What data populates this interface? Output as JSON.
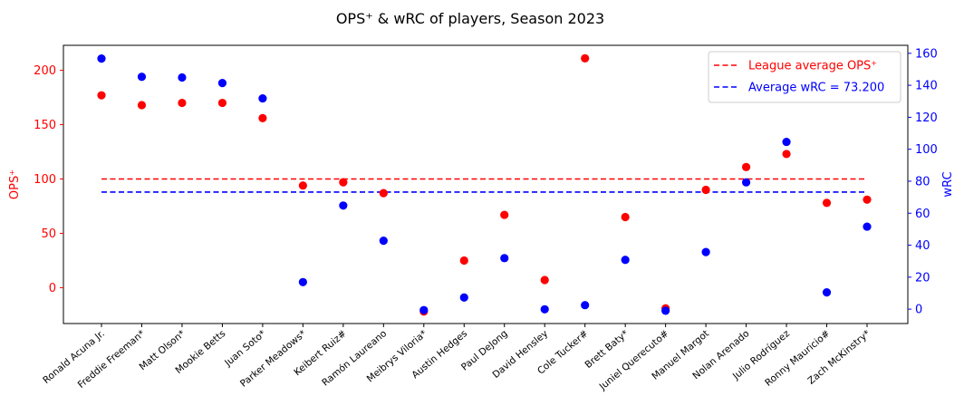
{
  "chart_data": {
    "type": "scatter",
    "title": "OPS⁺ & wRC of players, Season 2023",
    "categories": [
      "Ronald Acuna Jr.",
      "Freddie Freeman*",
      "Matt Olson*",
      "Mookie Betts",
      "Juan Soto*",
      "Parker Meadows*",
      "Keibert Ruiz#",
      "Ramón Laureano",
      "Meibrys Viloria*",
      "Austin Hedges",
      "Paul DeJong",
      "David Hensley",
      "Cole Tucker#",
      "Brett Baty*",
      "Juniel Querecuto#",
      "Manuel Margot",
      "Nolan Arenado",
      "Julio Rodríguez",
      "Ronny Mauricio#",
      "Zach McKinstry*"
    ],
    "ylabel_left": "OPS⁺",
    "ylabel_right": "wRC",
    "ylim_left": [
      -33,
      223
    ],
    "ylim_right": [
      -9,
      165
    ],
    "yticks_left": [
      "0",
      "50",
      "100",
      "150",
      "200"
    ],
    "yticks_right": [
      "0",
      "20",
      "40",
      "60",
      "80",
      "100",
      "120",
      "140",
      "160"
    ],
    "series": [
      {
        "name": "OPS⁺",
        "axis": "left",
        "color": "#ff0000",
        "values": [
          177,
          168,
          170,
          170,
          156,
          94,
          97,
          87,
          -22,
          25,
          67,
          7,
          211,
          65,
          -19,
          90,
          111,
          123,
          78,
          81
        ]
      },
      {
        "name": "wRC",
        "axis": "right",
        "color": "#0000ff",
        "values": [
          156.7,
          145.3,
          144.9,
          141.4,
          131.8,
          16.9,
          64.8,
          42.8,
          -0.6,
          7.3,
          31.9,
          -0.1,
          2.5,
          30.8,
          -1.0,
          35.7,
          79.3,
          104.6,
          10.5,
          51.6
        ]
      }
    ],
    "reference_lines": [
      {
        "label": "League average OPS⁺",
        "axis": "left",
        "value": 100,
        "color": "#ff0000",
        "style": "dashed"
      },
      {
        "label": "Average wRC = 73.200",
        "axis": "right",
        "value": 73.2,
        "color": "#0000ff",
        "style": "dashed"
      }
    ],
    "legend_position": "top-right",
    "grid": false,
    "colors": {
      "left_axis": "#ff0000",
      "right_axis": "#0000ff"
    }
  }
}
